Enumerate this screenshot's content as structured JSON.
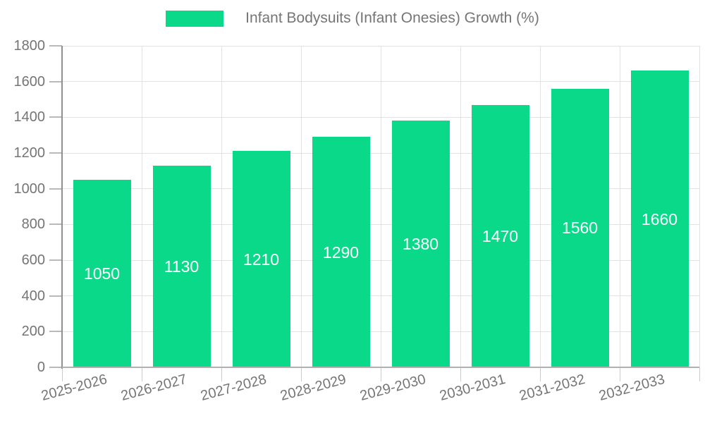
{
  "legend": {
    "label": "Infant Bodysuits (Infant Onesies) Growth (%)",
    "swatch_color": "#0bd98a"
  },
  "chart_data": {
    "type": "bar",
    "title": "Infant Bodysuits (Infant Onesies) Growth (%)",
    "categories": [
      "2025-2026",
      "2026-2027",
      "2027-2028",
      "2028-2029",
      "2029-2030",
      "2030-2031",
      "2031-2032",
      "2032-2033"
    ],
    "values": [
      1050,
      1130,
      1210,
      1290,
      1380,
      1470,
      1560,
      1660
    ],
    "value_labels": [
      "1050",
      "1130",
      "1210",
      "1290",
      "1380",
      "1470",
      "1560",
      "1660"
    ],
    "xlabel": "",
    "ylabel": "",
    "ylim": [
      0,
      1800
    ],
    "ytick_step": 200,
    "ytick_labels": [
      "0",
      "200",
      "400",
      "600",
      "800",
      "1000",
      "1200",
      "1400",
      "1600",
      "1800"
    ],
    "grid": true,
    "legend_position": "top-center",
    "x_tick_rotation_deg": -15
  },
  "colors": {
    "bar": "#0bd98a",
    "axis_text": "#757575",
    "gridline": "#e2e2e2",
    "y_axis_line": "#8f8f8f",
    "x_axis_line": "#b0b0b0",
    "value_label": "#ffffff",
    "background": "#ffffff"
  }
}
